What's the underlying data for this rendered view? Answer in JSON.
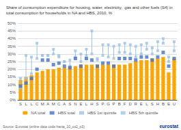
{
  "chart_data": {
    "type": "bar",
    "title": "Share of consumption expenditure for housing, water, electricity,  gas and other fuels (S4) in\ntotal consumption for households in NA and HBS, 2010, %",
    "categories": [
      "S",
      "L",
      "L",
      "C",
      "M",
      "A",
      "M",
      "C",
      "A",
      "S",
      "N",
      "E",
      "L",
      "H",
      "S",
      "P",
      "G",
      "P",
      "B",
      "F",
      "D",
      "R",
      "E",
      "L",
      "S",
      "H",
      "B",
      "E",
      "U"
    ],
    "series": [
      {
        "name": "NA total",
        "type": "bar",
        "color": "#FFA500",
        "values": [
          13,
          15,
          16,
          18,
          19,
          20,
          20,
          21,
          21,
          22,
          22,
          23,
          23,
          23,
          23,
          23,
          23,
          23,
          23,
          23,
          24,
          25,
          26,
          26,
          27,
          27,
          28,
          18,
          27
        ]
      },
      {
        "name": "HBS total",
        "type": "scatter",
        "marker": "square",
        "color": "#4472C4",
        "values": [
          9,
          11,
          14,
          20,
          26,
          26,
          23,
          24,
          22,
          21,
          27,
          22,
          27,
          26,
          22,
          24,
          24,
          22,
          27,
          27,
          27,
          26,
          28,
          28,
          26,
          28,
          31,
          22,
          27
        ]
      },
      {
        "name": "HBS 1st quintile",
        "type": "scatter",
        "marker": "square",
        "color": "#9DC3E6",
        "values": [
          8,
          14,
          17,
          27,
          29,
          29,
          30,
          29,
          25,
          22,
          28,
          25,
          29,
          30,
          26,
          29,
          28,
          27,
          31,
          31,
          30,
          28,
          30,
          33,
          30,
          32,
          37,
          25,
          32
        ]
      },
      {
        "name": "HBS 5th quintile",
        "type": "scatter",
        "marker": "square",
        "color": "#9DC3E6",
        "values": [
          14,
          29,
          28,
          37,
          29,
          29,
          33,
          28,
          25,
          26,
          32,
          30,
          33,
          45,
          27,
          36,
          36,
          35,
          36,
          37,
          36,
          35,
          36,
          37,
          34,
          38,
          40,
          28,
          38
        ]
      }
    ],
    "ylim": [
      0,
      50
    ],
    "yticks": [
      {
        "value": 0,
        "label": "0%"
      },
      {
        "value": 5,
        "label": "5%"
      },
      {
        "value": 10,
        "label": "10%"
      },
      {
        "value": 15,
        "label": "15%"
      },
      {
        "value": 20,
        "label": "20%"
      },
      {
        "value": 25,
        "label": "25%"
      },
      {
        "value": 30,
        "label": "30%"
      },
      {
        "value": 35,
        "label": "35%"
      },
      {
        "value": 40,
        "label": "40%"
      },
      {
        "value": 45,
        "label": "45%"
      },
      {
        "value": 50,
        "label": "50%"
      }
    ],
    "grid": true,
    "legend": "bottom",
    "annotations": [
      "Source: Eurostat (online data code:hania_10_co2_p3)",
      "eurostat"
    ]
  }
}
